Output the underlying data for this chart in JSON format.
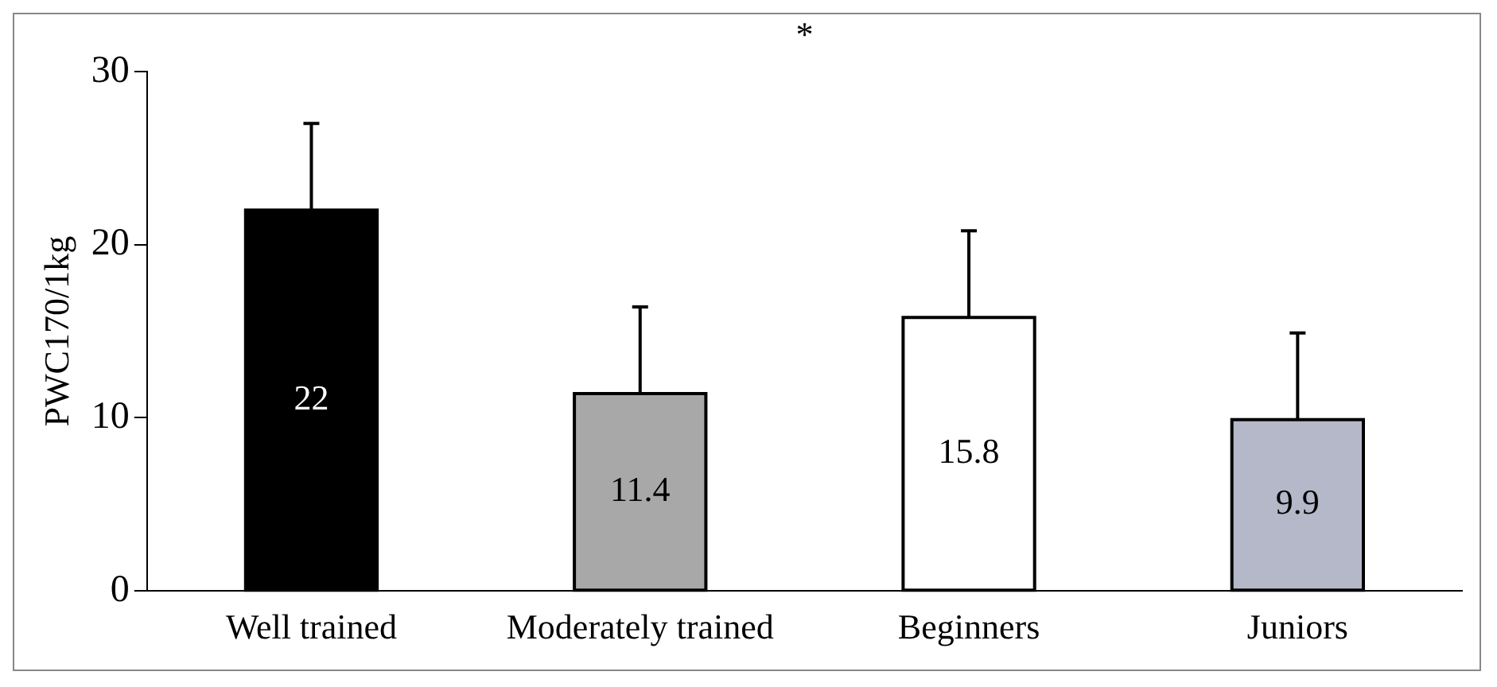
{
  "chart_data": {
    "type": "bar",
    "ylabel": "PWC170/1kg",
    "categories": [
      "Well trained",
      "Moderately trained",
      "Beginners",
      "Juniors"
    ],
    "values": [
      22,
      11.4,
      15.8,
      9.9
    ],
    "colors": [
      "#000000",
      "#a8a8a8",
      "#ffffff",
      "#b4b8c8"
    ],
    "errors": [
      [
        22,
        27
      ],
      [
        11.4,
        16.4
      ],
      [
        15.8,
        20.8
      ],
      [
        9.9,
        14.9
      ]
    ],
    "ylim": [
      0,
      30
    ],
    "yticks": [
      0,
      10,
      20,
      30
    ],
    "grid": false,
    "legend": false,
    "data_labels": true,
    "annotations": [
      "*"
    ]
  }
}
